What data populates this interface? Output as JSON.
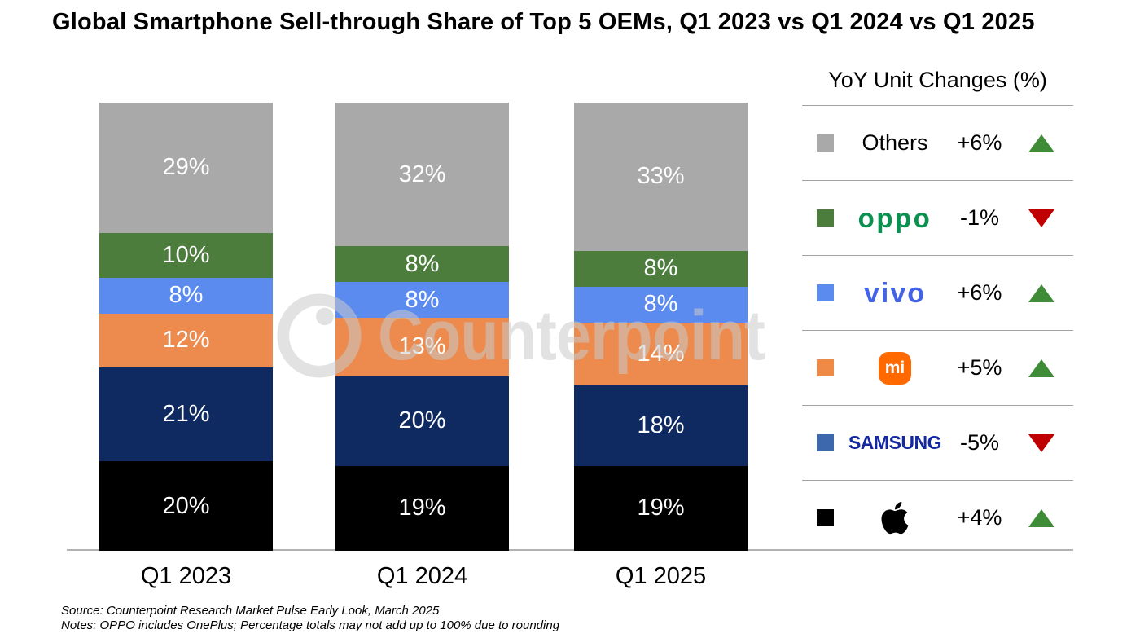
{
  "title": "Global Smartphone Sell-through Share of Top 5 OEMs, Q1 2023 vs Q1 2024 vs Q1 2025",
  "watermark": {
    "text": "Counterpoint"
  },
  "chart_data": {
    "type": "bar",
    "stacked": true,
    "categories": [
      "Q1 2023",
      "Q1 2024",
      "Q1 2025"
    ],
    "series": [
      {
        "name": "Apple",
        "color": "#000000",
        "values": [
          20,
          19,
          19
        ]
      },
      {
        "name": "Samsung",
        "color": "#0f2a60",
        "values": [
          21,
          20,
          18
        ]
      },
      {
        "name": "Xiaomi",
        "color": "#ec8b4d",
        "values": [
          12,
          13,
          14
        ]
      },
      {
        "name": "vivo",
        "color": "#5c8bef",
        "values": [
          8,
          8,
          8
        ]
      },
      {
        "name": "OPPO",
        "color": "#4c7d3c",
        "values": [
          10,
          8,
          8
        ]
      },
      {
        "name": "Others",
        "color": "#a9a9a9",
        "values": [
          29,
          32,
          33
        ]
      }
    ],
    "value_suffix": "%",
    "ylim": [
      0,
      100
    ],
    "ylabel": "",
    "xlabel": "",
    "legend_position": "right",
    "grid": false
  },
  "legend": {
    "title": "YoY Unit Changes (%)",
    "up_color": "#3e8c35",
    "down_color": "#c00000",
    "rows": [
      {
        "brand": "Others",
        "logo_type": "text",
        "logo_text": "Others",
        "swatch": "#a9a9a9",
        "change": "+6%",
        "direction": "up"
      },
      {
        "brand": "OPPO",
        "logo_type": "oppo",
        "logo_text": "oppo",
        "swatch": "#4c7d3c",
        "change": "-1%",
        "direction": "down"
      },
      {
        "brand": "vivo",
        "logo_type": "vivo",
        "logo_text": "vivo",
        "swatch": "#5c8bef",
        "change": "+6%",
        "direction": "up"
      },
      {
        "brand": "Xiaomi",
        "logo_type": "mi",
        "logo_text": "mi",
        "swatch": "#ee8a45",
        "change": "+5%",
        "direction": "up"
      },
      {
        "brand": "Samsung",
        "logo_type": "samsung",
        "logo_text": "SAMSUNG",
        "swatch": "#3d68ae",
        "change": "-5%",
        "direction": "down"
      },
      {
        "brand": "Apple",
        "logo_type": "apple",
        "logo_text": "",
        "swatch": "#000000",
        "change": "+4%",
        "direction": "up"
      }
    ]
  },
  "footer": {
    "source": "Source: Counterpoint Research Market Pulse Early Look, March 2025",
    "notes": "Notes: OPPO includes OnePlus; Percentage totals may not add up to 100% due to rounding"
  }
}
